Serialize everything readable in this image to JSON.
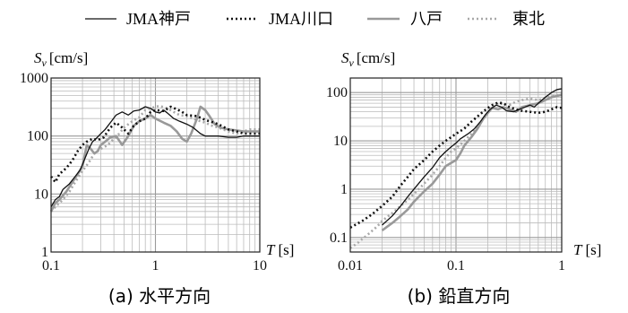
{
  "legend": {
    "position": "top",
    "entries": [
      {
        "label": "JMA神戸",
        "color": "#111111",
        "dash": "solid",
        "width": "thin"
      },
      {
        "label": "JMA川口",
        "color": "#111111",
        "dash": "dotted",
        "width": "thick"
      },
      {
        "label": "八戸",
        "color": "#999999",
        "dash": "solid",
        "width": "thick"
      },
      {
        "label": "東北",
        "color": "#a8a8a8",
        "dash": "dotted",
        "width": "thick"
      }
    ]
  },
  "chart_data": [
    {
      "type": "line",
      "caption": "(a) 水平方向",
      "ylabel_main": "S",
      "ylabel_sub": "v",
      "ylabel_unit": "[cm/s]",
      "xlabel_main": "T",
      "xlabel_unit": "[s]",
      "xscale": "log",
      "yscale": "log",
      "xlim": [
        0.1,
        10
      ],
      "ylim": [
        1,
        1000
      ],
      "xticks": [
        "0.1",
        "1",
        "10"
      ],
      "yticks": [
        "1",
        "10",
        "100",
        "1000"
      ],
      "grid": true,
      "series": [
        {
          "name": "JMA神戸",
          "points": [
            [
              0.1,
              6
            ],
            [
              0.11,
              8
            ],
            [
              0.12,
              9
            ],
            [
              0.13,
              12
            ],
            [
              0.15,
              15
            ],
            [
              0.17,
              20
            ],
            [
              0.19,
              26
            ],
            [
              0.21,
              40
            ],
            [
              0.23,
              60
            ],
            [
              0.25,
              80
            ],
            [
              0.27,
              90
            ],
            [
              0.3,
              110
            ],
            [
              0.33,
              130
            ],
            [
              0.37,
              170
            ],
            [
              0.42,
              230
            ],
            [
              0.48,
              260
            ],
            [
              0.55,
              230
            ],
            [
              0.62,
              270
            ],
            [
              0.7,
              280
            ],
            [
              0.8,
              320
            ],
            [
              0.9,
              300
            ],
            [
              1.0,
              260
            ],
            [
              1.1,
              250
            ],
            [
              1.2,
              280
            ],
            [
              1.3,
              250
            ],
            [
              1.5,
              200
            ],
            [
              1.7,
              180
            ],
            [
              2.0,
              160
            ],
            [
              2.3,
              140
            ],
            [
              2.7,
              110
            ],
            [
              3.0,
              100
            ],
            [
              4.0,
              100
            ],
            [
              5.0,
              95
            ],
            [
              6.0,
              95
            ],
            [
              7.0,
              100
            ],
            [
              8.0,
              100
            ],
            [
              10,
              100
            ]
          ]
        },
        {
          "name": "JMA川口",
          "points": [
            [
              0.1,
              20
            ],
            [
              0.11,
              16
            ],
            [
              0.12,
              22
            ],
            [
              0.14,
              28
            ],
            [
              0.16,
              38
            ],
            [
              0.18,
              55
            ],
            [
              0.2,
              70
            ],
            [
              0.22,
              80
            ],
            [
              0.25,
              90
            ],
            [
              0.28,
              85
            ],
            [
              0.32,
              95
            ],
            [
              0.37,
              140
            ],
            [
              0.42,
              170
            ],
            [
              0.48,
              140
            ],
            [
              0.55,
              110
            ],
            [
              0.62,
              150
            ],
            [
              0.7,
              180
            ],
            [
              0.8,
              200
            ],
            [
              0.9,
              260
            ],
            [
              1.0,
              280
            ],
            [
              1.2,
              270
            ],
            [
              1.4,
              320
            ],
            [
              1.6,
              290
            ],
            [
              1.8,
              260
            ],
            [
              2.0,
              230
            ],
            [
              2.5,
              220
            ],
            [
              3.0,
              190
            ],
            [
              4.0,
              160
            ],
            [
              5.0,
              130
            ],
            [
              6.0,
              120
            ],
            [
              7.0,
              110
            ],
            [
              8.0,
              110
            ],
            [
              10,
              110
            ]
          ]
        },
        {
          "name": "八戸",
          "points": [
            [
              0.1,
              5
            ],
            [
              0.11,
              7
            ],
            [
              0.12,
              8
            ],
            [
              0.14,
              11
            ],
            [
              0.16,
              16
            ],
            [
              0.18,
              22
            ],
            [
              0.2,
              30
            ],
            [
              0.22,
              70
            ],
            [
              0.24,
              60
            ],
            [
              0.26,
              50
            ],
            [
              0.28,
              55
            ],
            [
              0.3,
              70
            ],
            [
              0.33,
              80
            ],
            [
              0.37,
              95
            ],
            [
              0.42,
              100
            ],
            [
              0.48,
              70
            ],
            [
              0.55,
              100
            ],
            [
              0.62,
              150
            ],
            [
              0.7,
              180
            ],
            [
              0.8,
              200
            ],
            [
              0.9,
              230
            ],
            [
              1.0,
              200
            ],
            [
              1.2,
              170
            ],
            [
              1.4,
              150
            ],
            [
              1.6,
              120
            ],
            [
              1.8,
              90
            ],
            [
              2.0,
              80
            ],
            [
              2.2,
              110
            ],
            [
              2.5,
              200
            ],
            [
              2.7,
              320
            ],
            [
              3.0,
              280
            ],
            [
              3.3,
              220
            ],
            [
              3.7,
              160
            ],
            [
              4.2,
              140
            ],
            [
              5.0,
              130
            ],
            [
              6.0,
              125
            ],
            [
              7.0,
              120
            ],
            [
              8.0,
              120
            ],
            [
              10,
              120
            ]
          ]
        },
        {
          "name": "東北",
          "points": [
            [
              0.1,
              5
            ],
            [
              0.11,
              6
            ],
            [
              0.13,
              8
            ],
            [
              0.15,
              11
            ],
            [
              0.17,
              16
            ],
            [
              0.2,
              25
            ],
            [
              0.23,
              35
            ],
            [
              0.26,
              50
            ],
            [
              0.3,
              60
            ],
            [
              0.35,
              70
            ],
            [
              0.4,
              90
            ],
            [
              0.45,
              110
            ],
            [
              0.5,
              140
            ],
            [
              0.6,
              180
            ],
            [
              0.7,
              210
            ],
            [
              0.8,
              280
            ],
            [
              0.9,
              300
            ],
            [
              1.0,
              320
            ],
            [
              1.1,
              330
            ],
            [
              1.3,
              300
            ],
            [
              1.5,
              260
            ],
            [
              1.7,
              230
            ],
            [
              2.0,
              220
            ],
            [
              2.3,
              200
            ],
            [
              2.7,
              180
            ],
            [
              3.0,
              170
            ],
            [
              3.5,
              150
            ],
            [
              4.0,
              140
            ],
            [
              5.0,
              120
            ],
            [
              6.0,
              110
            ],
            [
              7.0,
              120
            ],
            [
              8.0,
              130
            ],
            [
              10,
              130
            ]
          ]
        }
      ]
    },
    {
      "type": "line",
      "caption": "(b) 鉛直方向",
      "ylabel_main": "S",
      "ylabel_sub": "v",
      "ylabel_unit": "[cm/s]",
      "xlabel_main": "T",
      "xlabel_unit": "[s]",
      "xscale": "log",
      "yscale": "log",
      "xlim": [
        0.01,
        1
      ],
      "ylim": [
        0.05,
        200
      ],
      "xticks": [
        "0.01",
        "0.1",
        "1"
      ],
      "yticks": [
        "0.1",
        "1",
        "10",
        "100"
      ],
      "grid": true,
      "series": [
        {
          "name": "JMA神戸",
          "points": [
            [
              0.02,
              0.18
            ],
            [
              0.025,
              0.28
            ],
            [
              0.03,
              0.45
            ],
            [
              0.035,
              0.7
            ],
            [
              0.04,
              1.0
            ],
            [
              0.05,
              1.8
            ],
            [
              0.06,
              2.8
            ],
            [
              0.07,
              4.5
            ],
            [
              0.08,
              6
            ],
            [
              0.09,
              7.5
            ],
            [
              0.1,
              9
            ],
            [
              0.11,
              11
            ],
            [
              0.13,
              14
            ],
            [
              0.15,
              18
            ],
            [
              0.17,
              25
            ],
            [
              0.19,
              35
            ],
            [
              0.21,
              45
            ],
            [
              0.24,
              55
            ],
            [
              0.27,
              50
            ],
            [
              0.3,
              42
            ],
            [
              0.35,
              40
            ],
            [
              0.4,
              45
            ],
            [
              0.45,
              50
            ],
            [
              0.5,
              55
            ],
            [
              0.55,
              50
            ],
            [
              0.6,
              60
            ],
            [
              0.7,
              80
            ],
            [
              0.8,
              100
            ],
            [
              0.9,
              115
            ],
            [
              1.0,
              120
            ]
          ]
        },
        {
          "name": "JMA川口",
          "points": [
            [
              0.01,
              0.16
            ],
            [
              0.013,
              0.22
            ],
            [
              0.016,
              0.3
            ],
            [
              0.02,
              0.45
            ],
            [
              0.025,
              0.7
            ],
            [
              0.03,
              1.2
            ],
            [
              0.035,
              1.8
            ],
            [
              0.04,
              2.6
            ],
            [
              0.05,
              4
            ],
            [
              0.06,
              6
            ],
            [
              0.07,
              8
            ],
            [
              0.08,
              10
            ],
            [
              0.1,
              14
            ],
            [
              0.12,
              18
            ],
            [
              0.14,
              25
            ],
            [
              0.16,
              32
            ],
            [
              0.18,
              40
            ],
            [
              0.2,
              48
            ],
            [
              0.22,
              55
            ],
            [
              0.25,
              62
            ],
            [
              0.28,
              60
            ],
            [
              0.32,
              50
            ],
            [
              0.37,
              45
            ],
            [
              0.42,
              42
            ],
            [
              0.5,
              40
            ],
            [
              0.6,
              38
            ],
            [
              0.7,
              40
            ],
            [
              0.8,
              45
            ],
            [
              0.9,
              50
            ],
            [
              1.0,
              48
            ]
          ]
        },
        {
          "name": "八戸",
          "points": [
            [
              0.02,
              0.14
            ],
            [
              0.025,
              0.2
            ],
            [
              0.03,
              0.28
            ],
            [
              0.035,
              0.38
            ],
            [
              0.04,
              0.55
            ],
            [
              0.05,
              0.9
            ],
            [
              0.06,
              1.3
            ],
            [
              0.07,
              2.0
            ],
            [
              0.08,
              3.0
            ],
            [
              0.09,
              3.5
            ],
            [
              0.1,
              4
            ],
            [
              0.11,
              5.5
            ],
            [
              0.12,
              8
            ],
            [
              0.14,
              12
            ],
            [
              0.16,
              18
            ],
            [
              0.18,
              28
            ],
            [
              0.2,
              38
            ],
            [
              0.22,
              48
            ],
            [
              0.25,
              45
            ],
            [
              0.28,
              50
            ],
            [
              0.32,
              45
            ],
            [
              0.37,
              40
            ],
            [
              0.42,
              50
            ],
            [
              0.5,
              55
            ],
            [
              0.6,
              60
            ],
            [
              0.7,
              70
            ],
            [
              0.8,
              80
            ],
            [
              0.9,
              85
            ],
            [
              1.0,
              90
            ]
          ]
        },
        {
          "name": "東北",
          "points": [
            [
              0.01,
              0.06
            ],
            [
              0.012,
              0.08
            ],
            [
              0.015,
              0.12
            ],
            [
              0.018,
              0.17
            ],
            [
              0.02,
              0.22
            ],
            [
              0.025,
              0.32
            ],
            [
              0.03,
              0.45
            ],
            [
              0.035,
              0.6
            ],
            [
              0.04,
              0.8
            ],
            [
              0.05,
              1.3
            ],
            [
              0.06,
              2
            ],
            [
              0.07,
              3
            ],
            [
              0.08,
              4.5
            ],
            [
              0.09,
              6
            ],
            [
              0.1,
              7
            ],
            [
              0.12,
              10
            ],
            [
              0.14,
              14
            ],
            [
              0.16,
              20
            ],
            [
              0.18,
              28
            ],
            [
              0.2,
              38
            ],
            [
              0.22,
              50
            ],
            [
              0.25,
              60
            ],
            [
              0.28,
              58
            ],
            [
              0.32,
              55
            ],
            [
              0.37,
              65
            ],
            [
              0.42,
              70
            ],
            [
              0.5,
              75
            ],
            [
              0.6,
              70
            ],
            [
              0.7,
              75
            ],
            [
              0.8,
              85
            ],
            [
              1.0,
              90
            ]
          ]
        }
      ]
    }
  ]
}
